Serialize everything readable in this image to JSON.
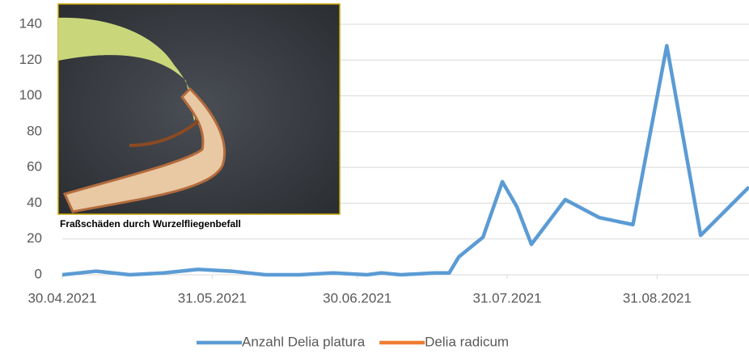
{
  "chart_data": {
    "type": "line",
    "x": [
      "30.04.2021",
      "07.05.2021",
      "14.05.2021",
      "21.05.2021",
      "28.05.2021",
      "04.06.2021",
      "11.06.2021",
      "18.06.2021",
      "25.06.2021",
      "02.07.2021",
      "05.07.2021",
      "09.07.2021",
      "16.07.2021",
      "19.07.2021",
      "21.07.2021",
      "26.07.2021",
      "30.07.2021",
      "02.08.2021",
      "05.08.2021",
      "12.08.2021",
      "19.08.2021",
      "26.08.2021",
      "02.09.2021",
      "09.09.2021",
      "19.09.2021"
    ],
    "series": [
      {
        "name": "Anzahl Delia platura",
        "color": "#5b9bd5",
        "values": [
          0,
          2,
          0,
          1,
          3,
          2,
          0,
          0,
          1,
          0,
          1,
          0,
          1,
          1,
          10,
          21,
          52,
          38,
          17,
          42,
          32,
          28,
          128,
          22,
          49
        ]
      },
      {
        "name": "Delia radicum",
        "color": "#ed7d31",
        "values": [
          null,
          null,
          null,
          null,
          null,
          null,
          null,
          null,
          null,
          null,
          null,
          null,
          null,
          null,
          null,
          null,
          null,
          null,
          null,
          null,
          null,
          null,
          null,
          null,
          null
        ]
      }
    ],
    "xlim": [
      "30.04.2021",
      "19.09.2021"
    ],
    "xticks": [
      "30.04.2021",
      "31.05.2021",
      "30.06.2021",
      "31.07.2021",
      "31.08.2021"
    ],
    "ylim": [
      0,
      140
    ],
    "yticks": [
      0,
      20,
      40,
      60,
      80,
      100,
      120,
      140
    ],
    "grid": true,
    "legend": "bottom",
    "annotations": [
      "Fraßschäden durch Wurzelfliegenbefall"
    ]
  }
}
